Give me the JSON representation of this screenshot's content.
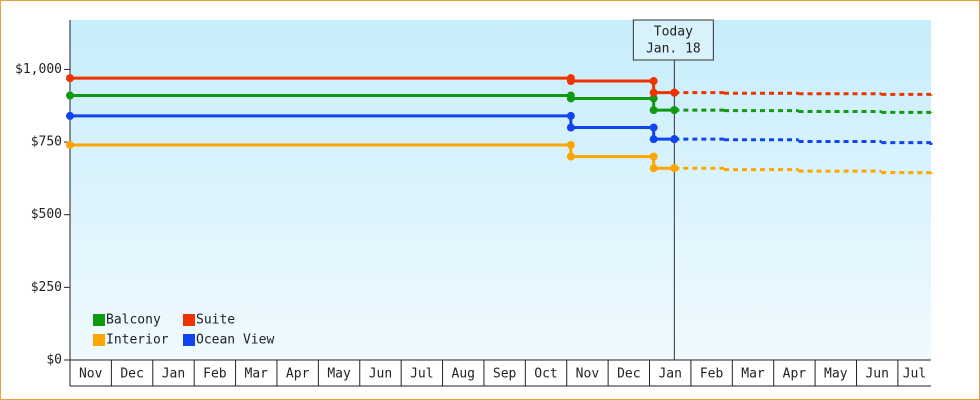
{
  "chart_data": {
    "type": "step-line",
    "categories": [
      "Nov",
      "Dec",
      "Jan",
      "Feb",
      "Mar",
      "Apr",
      "May",
      "Jun",
      "Jul",
      "Aug",
      "Sep",
      "Oct",
      "Nov",
      "Dec",
      "Jan",
      "Feb",
      "Mar",
      "Apr",
      "May",
      "Jun",
      "Jul"
    ],
    "x": [
      0,
      12.1,
      14.1,
      14.6,
      15.8,
      17.6,
      19.6,
      20.8
    ],
    "xlim": [
      0,
      20.8
    ],
    "today": {
      "x": 14.6,
      "label": [
        "Today",
        "Jan. 18"
      ]
    },
    "solid_until": 3,
    "series": [
      {
        "name": "Balcony",
        "color": "#119911",
        "values": [
          910,
          900,
          860,
          860,
          858,
          855,
          852,
          850
        ]
      },
      {
        "name": "Suite",
        "color": "#ee3300",
        "values": [
          970,
          960,
          920,
          920,
          918,
          916,
          914,
          910
        ]
      },
      {
        "name": "Interior",
        "color": "#ffa500",
        "values": [
          740,
          700,
          660,
          660,
          655,
          650,
          645,
          640
        ]
      },
      {
        "name": "Ocean View",
        "color": "#1144ee",
        "values": [
          840,
          800,
          760,
          760,
          758,
          752,
          748,
          740
        ]
      }
    ],
    "ylim": [
      0,
      1170
    ],
    "yticks": [
      {
        "value": 0,
        "label": "$0"
      },
      {
        "value": 250,
        "label": "$250"
      },
      {
        "value": 500,
        "label": "$500"
      },
      {
        "value": 750,
        "label": "$750"
      },
      {
        "value": 1000,
        "label": "$1,000"
      }
    ],
    "legend": "lower-left"
  }
}
